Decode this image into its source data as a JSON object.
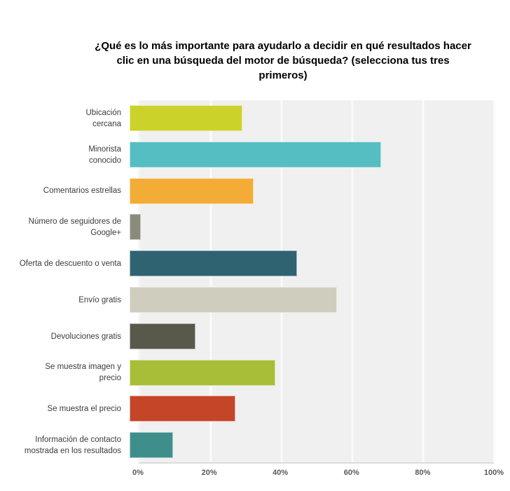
{
  "title": "¿Qué es lo más importante para ayudarlo a decidir en qué resultados hacer clic en una búsqueda del motor de búsqueda? (selecciona tus tres primeros)",
  "chart_data": {
    "type": "bar",
    "orientation": "horizontal",
    "title": "¿Qué es lo más importante para ayudarlo a decidir en qué resultados hacer clic en una búsqueda del motor de búsqueda? (selecciona tus tres primeros)",
    "categories": [
      "Ubicación\ncercana",
      "Minorista\nconocido",
      "Comentarios estrellas",
      "Número  de seguidores de\nGoogle+",
      "Oferta de descuento o venta",
      "Envío gratis",
      "Devoluciones gratis",
      "Se muestra imagen y\nprecio",
      "Se muestra el precio",
      "Información de contacto\nmostrada en los resultados"
    ],
    "values": [
      31,
      69,
      34,
      3,
      46,
      57,
      18,
      40,
      29,
      12
    ],
    "unit": "%",
    "colors": [
      "#cbd32b",
      "#55bec2",
      "#f3ac36",
      "#8b8b7d",
      "#2f6372",
      "#cfcdbd",
      "#5a584a",
      "#a8bd38",
      "#c44527",
      "#3e8f8b"
    ],
    "xlabel": "",
    "ylabel": "",
    "xlim": [
      0,
      100
    ],
    "x_ticks": [
      "0%",
      "20%",
      "40%",
      "60%",
      "80%",
      "100%"
    ],
    "gridline_percents": [
      20,
      40,
      60,
      80,
      100
    ],
    "grid": "vertical white gridlines on light-gray plot background",
    "legend": "none"
  },
  "style_colors": {
    "plot_background": "#f0f0f0",
    "gridline": "#fafafa",
    "axis_line": "#dcdcdc",
    "category_label_text": "#3c3c3c",
    "tick_label_text": "#595959",
    "title_text": "#000000",
    "page_background": "#ffffff"
  }
}
